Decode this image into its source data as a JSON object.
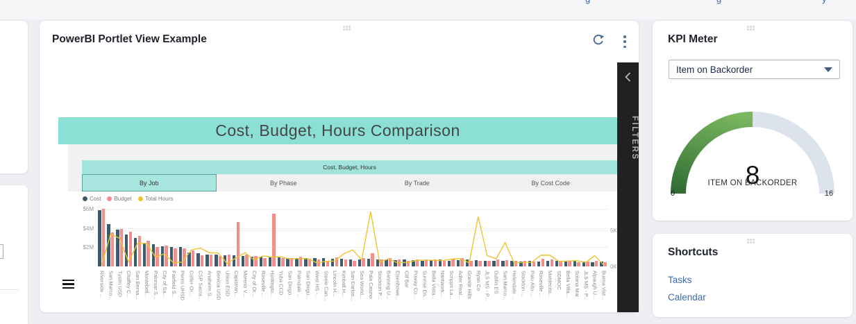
{
  "page": {
    "top_link_fragments": [
      "g",
      "g",
      "y"
    ]
  },
  "powerbi_portlet": {
    "title": "PowerBI Portlet View Example",
    "filters_label": "FILTERS",
    "banner_title": "Cost, Budget, Hours Comparison",
    "subheader": "Cost, Budget, Hours",
    "tabs": [
      {
        "label": "By Job",
        "active": true
      },
      {
        "label": "By Phase",
        "active": false
      },
      {
        "label": "By Trade",
        "active": false
      },
      {
        "label": "By Cost Code",
        "active": false
      }
    ]
  },
  "chart_data": {
    "type": "bar+line",
    "title": "Cost, Budget, Hours Comparison",
    "group_header": "Cost, Budget, Hours",
    "legend_position": "top-left",
    "grid": true,
    "categories": [
      "Riverside ...",
      "San Marco...",
      "Tustin USD",
      "Chaffey C...",
      "San Berna...",
      "Montebell...",
      "Palomar S...",
      "City of Sa...",
      "Fairfield S...",
      "Perris UHSD",
      "Cutler-Or...",
      "CSP Sacra...",
      "Anaheim S...",
      "Benicia USD",
      "Union ESD",
      "Capistran...",
      "Moreno V...",
      "City of Or...",
      "Roseville ...",
      "Huntingto...",
      "Yuba CCD",
      "San Diego...",
      "Palmdale ...",
      "San Diegu...",
      "West HS -...",
      "Steele Can...",
      "Lincoln H...",
      "Kimball H...",
      "San Carlos...",
      "Sea World...",
      "Pala Casino",
      "Stockton P...",
      "Banning U...",
      "Eisenhowe...",
      "Clif Bar",
      "Poway Co...",
      "Sunrise En...",
      "Bella Vista...",
      "Nantwork...",
      "Scripps La...",
      "Adler Real...",
      "Granite Hills",
      "Ryan Co",
      "JLS MS - P...",
      "Dublin ES",
      "San Marco...",
      "Helendale ...",
      "Stockton ...",
      "Palo Alto ...",
      "Roseville ...",
      "Montecito...",
      "SDMOC",
      "Bella Villa...",
      "Solana Mar",
      "JLS MS - P...",
      "Alpaugh U...",
      "Buena Vist..."
    ],
    "series": [
      {
        "name": "Cost",
        "type": "bar",
        "axis": "left",
        "unit": "$M",
        "color": "#3d5b6b",
        "values": [
          5.9,
          4.45,
          3.85,
          3.35,
          3.0,
          2.5,
          2.3,
          2.1,
          2.05,
          2.0,
          1.45,
          1.4,
          1.25,
          1.25,
          1.15,
          1.15,
          1.1,
          1.05,
          1.0,
          0.95,
          0.95,
          0.85,
          0.9,
          0.85,
          0.85,
          0.9,
          0.8,
          0.8,
          0.7,
          0.75,
          0.8,
          0.75,
          0.7,
          0.65,
          0.7,
          0.65,
          0.6,
          0.65,
          0.7,
          0.6,
          0.65,
          0.7,
          0.65,
          0.6,
          0.55,
          0.6,
          0.55,
          0.5,
          0.55,
          0.5,
          0.55,
          0.6,
          0.5,
          0.55,
          0.5,
          0.45,
          0.5
        ]
      },
      {
        "name": "Budget",
        "type": "bar",
        "axis": "left",
        "unit": "$M",
        "color": "#f28f8d",
        "values": [
          6.05,
          3.55,
          3.9,
          3.6,
          3.2,
          2.7,
          2.05,
          2.15,
          1.9,
          1.9,
          1.65,
          1.15,
          1.25,
          1.1,
          1.2,
          4.65,
          1.25,
          1.1,
          0.85,
          5.5,
          0.9,
          0.85,
          1.0,
          0.8,
          0.75,
          0.6,
          0.95,
          0.75,
          0.55,
          0.85,
          1.4,
          0.7,
          0.85,
          0.75,
          0.6,
          0.7,
          0.75,
          0.7,
          0.6,
          0.8,
          0.85,
          0.6,
          0.55,
          0.55,
          0.75,
          0.65,
          0.6,
          0.6,
          0.5,
          0.8,
          0.7,
          0.5,
          0.55,
          0.45,
          0.5,
          0.6,
          0.4
        ]
      },
      {
        "name": "Total Hours",
        "type": "line",
        "axis": "right",
        "unit": "K",
        "color": "#eec431",
        "values": [
          0.2,
          4.5,
          3.9,
          0.6,
          3.2,
          3.2,
          1.3,
          1.75,
          0.5,
          0.6,
          2.3,
          2.55,
          1.9,
          1.85,
          0.4,
          1.2,
          1.9,
          0.9,
          1.45,
          1.3,
          1.35,
          1.0,
          1.1,
          1.05,
          0.5,
          0.7,
          0.75,
          1.75,
          2.3,
          0.9,
          7.6,
          0.6,
          1.05,
          0.5,
          0.55,
          0.8,
          0.9,
          0.85,
          0.8,
          1.0,
          1.1,
          0.5,
          6.9,
          1.5,
          1.05,
          3.3,
          0.5,
          0.55,
          0.6,
          1.55,
          1.55,
          0.7,
          0.75,
          0.8,
          0.55,
          1.5,
          0.2
        ]
      }
    ],
    "left_axis": {
      "ticks": [
        {
          "label": "$6M",
          "value": 6
        },
        {
          "label": "$4M",
          "value": 4
        },
        {
          "label": "$2M",
          "value": 2
        }
      ],
      "max": 6.45
    },
    "right_axis": {
      "ticks": [
        {
          "label": "5K",
          "value": 5
        },
        {
          "label": "0K",
          "value": 0
        }
      ],
      "max": 8.56
    }
  },
  "kpi_meter": {
    "title": "KPI Meter",
    "dropdown_value": "Item on Backorder",
    "gauge": {
      "value": 8,
      "min": 0,
      "max": 16,
      "label": "ITEM ON BACKORDER",
      "fill_color_dark": "#2f6b33",
      "fill_color_light": "#7cb85f",
      "track_color": "#dce3ed"
    }
  },
  "shortcuts": {
    "title": "Shortcuts",
    "links": [
      "Tasks",
      "Calendar"
    ]
  }
}
